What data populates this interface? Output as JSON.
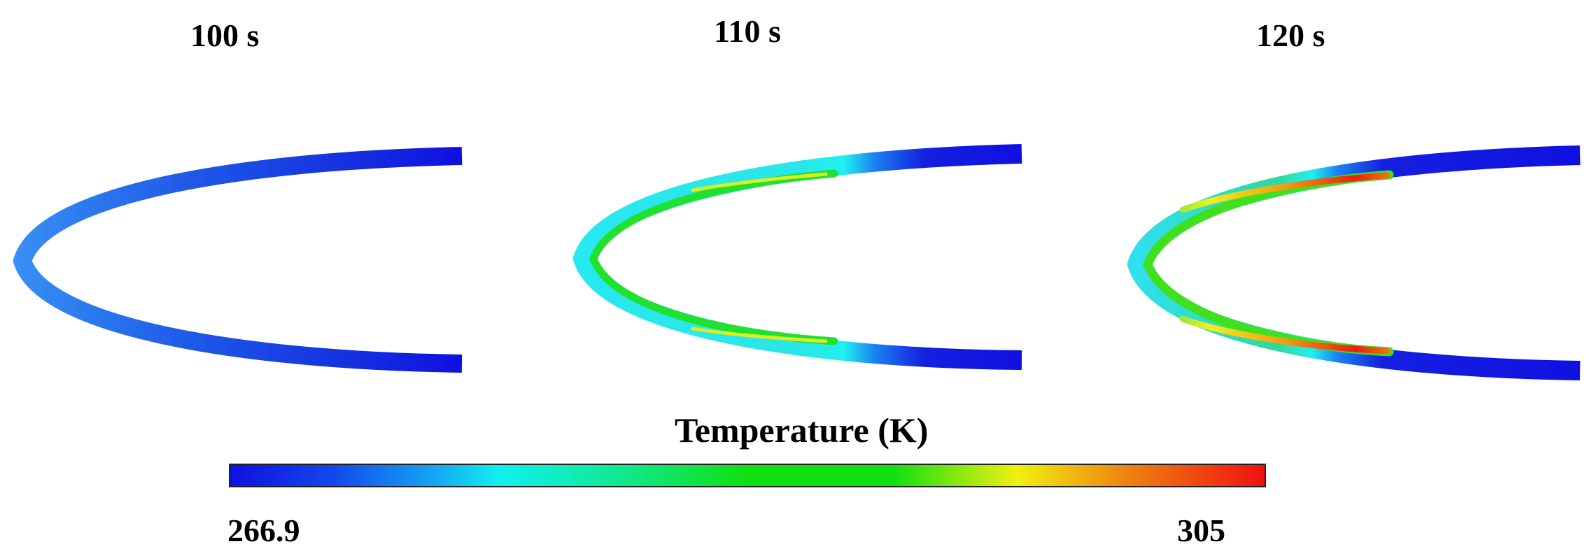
{
  "panels": [
    {
      "time_label": "100 s"
    },
    {
      "time_label": "110 s"
    },
    {
      "time_label": "120 s"
    }
  ],
  "legend": {
    "title": "Temperature (K)",
    "min_label": "266.9",
    "max_label": "305",
    "color_stops": [
      "#1010e0",
      "#1a6cf0",
      "#10f0f0",
      "#10e870",
      "#10e010",
      "#f0f010",
      "#f08010",
      "#f01010"
    ]
  },
  "colors": {
    "cold": "#1010e0",
    "cool": "#3a8cf0",
    "cyan": "#20e8f0",
    "green": "#20e020",
    "yellow": "#f0f020",
    "orange": "#f09010",
    "red": "#e82010"
  }
}
